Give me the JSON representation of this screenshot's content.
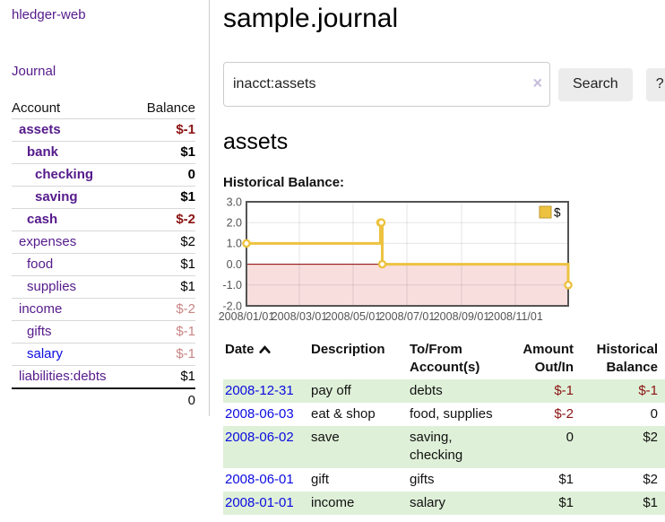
{
  "colors": {
    "link-purple": "#551a8b",
    "link-blue": "#0b0be0",
    "neg-strong": "#8b1212",
    "neg-dim": "#c98585",
    "row-green": "#dff0d8",
    "chart-gold": "#edc240",
    "chart-pink": "#f9dede",
    "zero-line": "#8b0000",
    "plot-border": "#545454",
    "grid": "#e7e7e7",
    "tick-text": "#545454",
    "legend-box-border": "#c09a2f",
    "divider": "#cccccc",
    "row-line": "#d8d8d8",
    "button-bg": "#ececec",
    "input-border": "#cccccc",
    "clear-x": "#c5bddb"
  },
  "sidebar": {
    "brand": "hledger-web",
    "nav": [
      {
        "label": "Journal"
      }
    ],
    "accounts_table": {
      "headers": [
        "Account",
        "Balance"
      ],
      "rows": [
        {
          "name": "assets",
          "indent": 0,
          "bold": true,
          "balance": "$-1"
        },
        {
          "name": "bank",
          "indent": 1,
          "bold": true,
          "balance": "$1"
        },
        {
          "name": "checking",
          "indent": 2,
          "bold": true,
          "balance": "0"
        },
        {
          "name": "saving",
          "indent": 2,
          "bold": true,
          "balance": "$1"
        },
        {
          "name": "cash",
          "indent": 1,
          "bold": true,
          "balance": "$-2"
        },
        {
          "name": "expenses",
          "indent": 0,
          "bold": false,
          "balance": "$2"
        },
        {
          "name": "food",
          "indent": 1,
          "bold": false,
          "balance": "$1"
        },
        {
          "name": "supplies",
          "indent": 1,
          "bold": false,
          "balance": "$1"
        },
        {
          "name": "income",
          "indent": 0,
          "bold": false,
          "balance": "$-2"
        },
        {
          "name": "gifts",
          "indent": 1,
          "bold": false,
          "balance": "$-1"
        },
        {
          "name": "salary",
          "indent": 1,
          "bold": false,
          "balance": "$-1",
          "link_color": "blue"
        },
        {
          "name": "liabilities:debts",
          "indent": 0,
          "bold": false,
          "balance": "$1"
        }
      ],
      "total": "0"
    }
  },
  "header": {
    "title": "sample.journal"
  },
  "search": {
    "value": "inacct:assets",
    "clear_icon": "×",
    "button_label": "Search",
    "help_label": "?"
  },
  "account_page": {
    "heading": "assets",
    "chart_label": "Historical Balance:"
  },
  "chart_data": {
    "type": "line",
    "step": true,
    "title": "Historical Balance:",
    "series": [
      {
        "name": "$",
        "color": "#edc240",
        "points": [
          [
            "2008-01-01",
            1.0
          ],
          [
            "2008-06-01",
            2.0
          ],
          [
            "2008-06-02",
            2.0
          ],
          [
            "2008-06-03",
            0.0
          ],
          [
            "2008-12-31",
            -1.0
          ]
        ]
      }
    ],
    "x_range": [
      "2008-01-01",
      "2008-12-31"
    ],
    "ylim": [
      -2.0,
      3.0
    ],
    "y_ticks": [
      3.0,
      2.0,
      1.0,
      0.0,
      -1.0,
      -2.0
    ],
    "x_ticks": [
      "2008/01/01",
      "2008/03/01",
      "2008/05/01",
      "2008/07/01",
      "2008/09/01",
      "2008/11/01"
    ],
    "legend_position": "top-right",
    "negative_region_shaded": true,
    "grid": true
  },
  "register_table": {
    "columns": [
      {
        "label": "Date",
        "sort_indicator": "ascending"
      },
      {
        "label": "Description"
      },
      {
        "label": "To/From Account(s)"
      },
      {
        "label": "Amount Out/In"
      },
      {
        "label": "Historical Balance"
      }
    ],
    "rows": [
      {
        "date": "2008-12-31",
        "description": "pay off",
        "accounts": "debts",
        "amount": "$-1",
        "balance": "$-1"
      },
      {
        "date": "2008-06-03",
        "description": "eat & shop",
        "accounts": "food, supplies",
        "amount": "$-2",
        "balance": "0"
      },
      {
        "date": "2008-06-02",
        "description": "save",
        "accounts": "saving, checking",
        "amount": "0",
        "balance": "$2"
      },
      {
        "date": "2008-06-01",
        "description": "gift",
        "accounts": "gifts",
        "amount": "$1",
        "balance": "$2"
      },
      {
        "date": "2008-01-01",
        "description": "income",
        "accounts": "salary",
        "amount": "$1",
        "balance": "$1"
      }
    ]
  }
}
